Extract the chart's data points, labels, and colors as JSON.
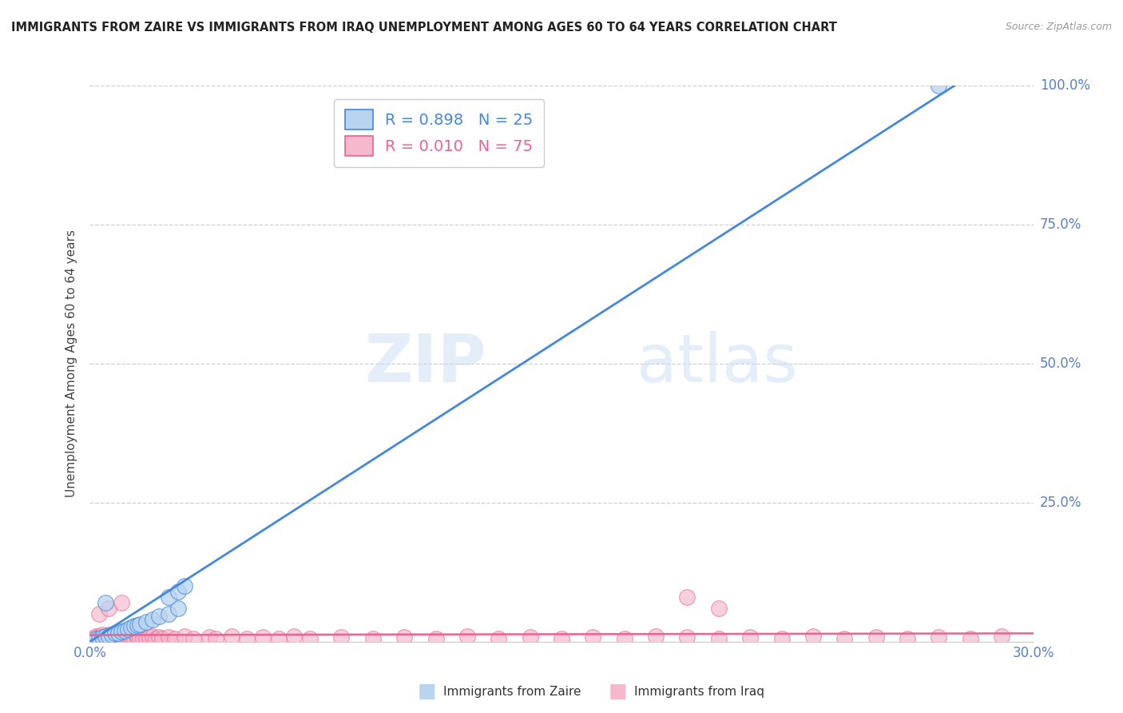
{
  "title": "IMMIGRANTS FROM ZAIRE VS IMMIGRANTS FROM IRAQ UNEMPLOYMENT AMONG AGES 60 TO 64 YEARS CORRELATION CHART",
  "source": "Source: ZipAtlas.com",
  "ylabel": "Unemployment Among Ages 60 to 64 years",
  "xlim": [
    0.0,
    0.3
  ],
  "ylim": [
    0.0,
    1.0
  ],
  "background_color": "#ffffff",
  "grid_color": "#d0d0d0",
  "watermark_zip": "ZIP",
  "watermark_atlas": "atlas",
  "legend_zaire_label": "Immigrants from Zaire",
  "legend_iraq_label": "Immigrants from Iraq",
  "zaire_fill_color": "#b8d4f0",
  "iraq_fill_color": "#f5b8cc",
  "zaire_line_color": "#4488dd",
  "iraq_line_color": "#f06090",
  "legend_text_zaire": "R = 0.898   N = 25",
  "legend_text_iraq": "R = 0.010   N = 75",
  "zaire_scatter_x": [
    0.002,
    0.003,
    0.004,
    0.005,
    0.006,
    0.007,
    0.008,
    0.009,
    0.01,
    0.011,
    0.012,
    0.013,
    0.014,
    0.015,
    0.016,
    0.018,
    0.02,
    0.022,
    0.025,
    0.028,
    0.005,
    0.025,
    0.028,
    0.03,
    0.27
  ],
  "zaire_scatter_y": [
    0.005,
    0.005,
    0.008,
    0.01,
    0.01,
    0.012,
    0.015,
    0.015,
    0.018,
    0.02,
    0.022,
    0.025,
    0.028,
    0.03,
    0.032,
    0.035,
    0.04,
    0.045,
    0.05,
    0.06,
    0.07,
    0.08,
    0.09,
    0.1,
    1.0
  ],
  "iraq_scatter_x": [
    0.001,
    0.002,
    0.002,
    0.003,
    0.003,
    0.004,
    0.004,
    0.005,
    0.005,
    0.006,
    0.006,
    0.007,
    0.007,
    0.008,
    0.008,
    0.009,
    0.009,
    0.01,
    0.01,
    0.011,
    0.011,
    0.012,
    0.012,
    0.013,
    0.013,
    0.014,
    0.015,
    0.015,
    0.016,
    0.017,
    0.018,
    0.019,
    0.02,
    0.021,
    0.022,
    0.023,
    0.025,
    0.027,
    0.03,
    0.033,
    0.038,
    0.04,
    0.045,
    0.05,
    0.055,
    0.06,
    0.065,
    0.07,
    0.08,
    0.09,
    0.1,
    0.11,
    0.12,
    0.13,
    0.14,
    0.15,
    0.16,
    0.17,
    0.18,
    0.19,
    0.2,
    0.21,
    0.22,
    0.23,
    0.24,
    0.25,
    0.26,
    0.27,
    0.28,
    0.29,
    0.003,
    0.006,
    0.01,
    0.19,
    0.2
  ],
  "iraq_scatter_y": [
    0.005,
    0.005,
    0.01,
    0.005,
    0.01,
    0.008,
    0.012,
    0.005,
    0.01,
    0.008,
    0.012,
    0.005,
    0.01,
    0.008,
    0.012,
    0.005,
    0.01,
    0.008,
    0.012,
    0.005,
    0.01,
    0.005,
    0.008,
    0.005,
    0.01,
    0.005,
    0.005,
    0.01,
    0.008,
    0.005,
    0.005,
    0.008,
    0.01,
    0.005,
    0.008,
    0.005,
    0.008,
    0.005,
    0.01,
    0.005,
    0.008,
    0.005,
    0.01,
    0.005,
    0.008,
    0.005,
    0.01,
    0.005,
    0.008,
    0.005,
    0.008,
    0.005,
    0.01,
    0.005,
    0.008,
    0.005,
    0.008,
    0.005,
    0.01,
    0.008,
    0.005,
    0.008,
    0.005,
    0.01,
    0.005,
    0.008,
    0.005,
    0.008,
    0.005,
    0.01,
    0.05,
    0.06,
    0.07,
    0.08,
    0.06
  ],
  "zaire_trend_x": [
    0.0,
    0.275
  ],
  "zaire_trend_y": [
    0.0,
    1.0
  ],
  "iraq_trend_x": [
    0.0,
    0.3
  ],
  "iraq_trend_y": [
    0.012,
    0.015
  ]
}
